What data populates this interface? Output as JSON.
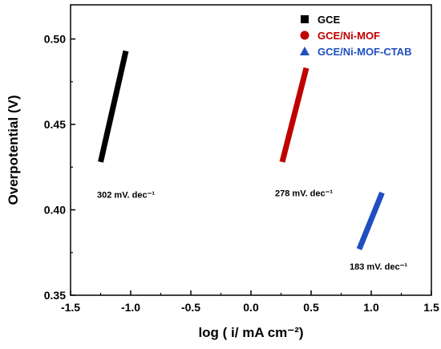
{
  "chart_data": {
    "type": "line",
    "xlabel": "log ( i/ mA cm⁻²)",
    "ylabel": "Overpotential (V)",
    "xlim": [
      -1.5,
      1.5
    ],
    "ylim": [
      0.35,
      0.52
    ],
    "xticks": [
      -1.5,
      -1.0,
      -0.5,
      0.0,
      0.5,
      1.0,
      1.5
    ],
    "yticks": [
      0.35,
      0.4,
      0.45,
      0.5
    ],
    "xtick_labels": [
      "-1.5",
      "-1.0",
      "-0.5",
      "0.0",
      "0.5",
      "1.0",
      "1.5"
    ],
    "ytick_labels": [
      "0.35",
      "0.40",
      "0.45",
      "0.50"
    ],
    "legend_position": "top-right",
    "series": [
      {
        "name": "GCE",
        "color": "#000000",
        "marker": "square",
        "x": [
          -1.25,
          -1.04
        ],
        "y": [
          0.428,
          0.493
        ]
      },
      {
        "name": "GCE/Ni-MOF",
        "color": "#c00000",
        "marker": "circle",
        "x": [
          0.26,
          0.46
        ],
        "y": [
          0.428,
          0.483
        ]
      },
      {
        "name": "GCE/Ni-MOF-CTAB",
        "color": "#1f4fbf",
        "marker": "triangle",
        "x": [
          0.9,
          1.09
        ],
        "y": [
          0.377,
          0.41
        ]
      }
    ],
    "annotations": [
      {
        "text": "302 mV. dec⁻¹",
        "x": -1.28,
        "y": 0.407
      },
      {
        "text": "278 mV. dec⁻¹",
        "x": 0.2,
        "y": 0.408
      },
      {
        "text": "183 mV. dec⁻¹",
        "x": 0.82,
        "y": 0.365
      }
    ]
  }
}
